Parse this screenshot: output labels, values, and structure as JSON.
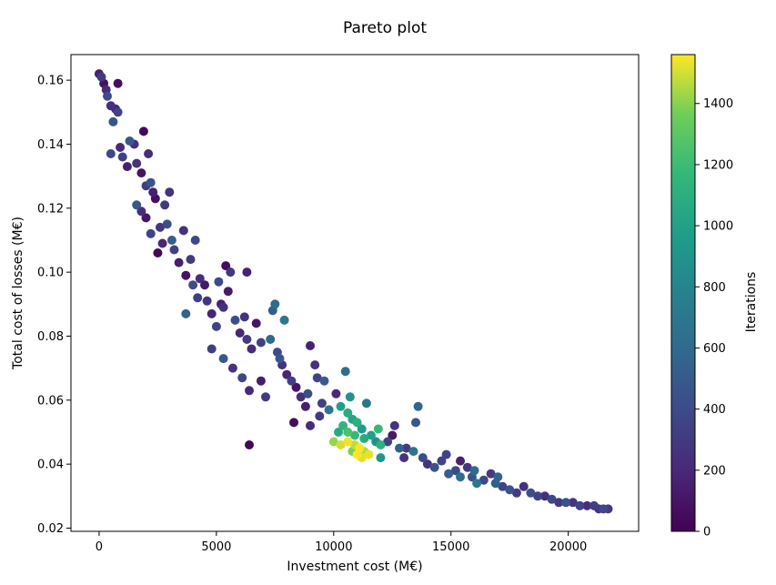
{
  "chart_data": {
    "type": "scatter",
    "title": "Pareto plot",
    "xlabel": "Investment cost (M€)",
    "ylabel": "Total cost of losses (M€)",
    "colorbar_label": "Iterations",
    "xlim": [
      -1200,
      23000
    ],
    "ylim": [
      0.019,
      0.168
    ],
    "x_ticks": [
      0,
      5000,
      10000,
      15000,
      20000
    ],
    "x_tick_labels": [
      "0",
      "5000",
      "10000",
      "15000",
      "20000"
    ],
    "y_ticks": [
      0.02,
      0.04,
      0.06,
      0.08,
      0.1,
      0.12,
      0.14,
      0.16
    ],
    "y_tick_labels": [
      "0.02",
      "0.04",
      "0.06",
      "0.08",
      "0.10",
      "0.12",
      "0.14",
      "0.16"
    ],
    "color_range": [
      0,
      1560
    ],
    "colorbar_ticks": [
      0,
      200,
      400,
      600,
      800,
      1000,
      1200,
      1400
    ],
    "colorbar_tick_labels": [
      "0",
      "200",
      "400",
      "600",
      "800",
      "1000",
      "1200",
      "1400"
    ],
    "colormap": "viridis",
    "grid": false,
    "points": [
      [
        0,
        0.162,
        150
      ],
      [
        100,
        0.161,
        300
      ],
      [
        200,
        0.159,
        80
      ],
      [
        300,
        0.157,
        220
      ],
      [
        350,
        0.155,
        400
      ],
      [
        500,
        0.152,
        250
      ],
      [
        700,
        0.151,
        180
      ],
      [
        800,
        0.159,
        60
      ],
      [
        600,
        0.147,
        450
      ],
      [
        500,
        0.137,
        380
      ],
      [
        900,
        0.139,
        200
      ],
      [
        1000,
        0.136,
        330
      ],
      [
        1300,
        0.141,
        500
      ],
      [
        1200,
        0.133,
        150
      ],
      [
        1600,
        0.134,
        260
      ],
      [
        1800,
        0.131,
        90
      ],
      [
        1900,
        0.144,
        40
      ],
      [
        2100,
        0.137,
        210
      ],
      [
        2000,
        0.127,
        320
      ],
      [
        2300,
        0.125,
        150
      ],
      [
        1600,
        0.121,
        480
      ],
      [
        1800,
        0.119,
        230
      ],
      [
        2000,
        0.117,
        110
      ],
      [
        2200,
        0.112,
        360
      ],
      [
        2400,
        0.123,
        70
      ],
      [
        2600,
        0.114,
        280
      ],
      [
        2700,
        0.109,
        190
      ],
      [
        2500,
        0.106,
        30
      ],
      [
        2900,
        0.115,
        420
      ],
      [
        3000,
        0.125,
        260
      ],
      [
        3200,
        0.107,
        340
      ],
      [
        3400,
        0.103,
        150
      ],
      [
        3600,
        0.113,
        250
      ],
      [
        3700,
        0.099,
        80
      ],
      [
        3900,
        0.104,
        300
      ],
      [
        4100,
        0.11,
        380
      ],
      [
        4300,
        0.098,
        220
      ],
      [
        4500,
        0.096,
        120
      ],
      [
        3700,
        0.087,
        560
      ],
      [
        4200,
        0.092,
        330
      ],
      [
        4600,
        0.091,
        270
      ],
      [
        4800,
        0.087,
        180
      ],
      [
        5000,
        0.083,
        350
      ],
      [
        5300,
        0.089,
        240
      ],
      [
        5500,
        0.094,
        130
      ],
      [
        5800,
        0.085,
        420
      ],
      [
        6000,
        0.081,
        190
      ],
      [
        6300,
        0.079,
        300
      ],
      [
        6500,
        0.076,
        220
      ],
      [
        6700,
        0.084,
        100
      ],
      [
        5100,
        0.097,
        400
      ],
      [
        5600,
        0.1,
        280
      ],
      [
        6300,
        0.1,
        160
      ],
      [
        5400,
        0.102,
        60
      ],
      [
        4800,
        0.076,
        320
      ],
      [
        5300,
        0.073,
        480
      ],
      [
        5700,
        0.07,
        250
      ],
      [
        6100,
        0.067,
        380
      ],
      [
        6400,
        0.063,
        200
      ],
      [
        6900,
        0.066,
        140
      ],
      [
        7100,
        0.061,
        310
      ],
      [
        7300,
        0.079,
        600
      ],
      [
        7400,
        0.088,
        520
      ],
      [
        7500,
        0.09,
        620
      ],
      [
        7900,
        0.085,
        700
      ],
      [
        7600,
        0.075,
        400
      ],
      [
        7800,
        0.071,
        260
      ],
      [
        8000,
        0.068,
        180
      ],
      [
        8200,
        0.066,
        330
      ],
      [
        8400,
        0.064,
        90
      ],
      [
        8600,
        0.061,
        240
      ],
      [
        8800,
        0.058,
        150
      ],
      [
        9000,
        0.077,
        160
      ],
      [
        9200,
        0.071,
        250
      ],
      [
        8900,
        0.062,
        420
      ],
      [
        9500,
        0.059,
        350
      ],
      [
        9800,
        0.057,
        680
      ],
      [
        9400,
        0.055,
        300
      ],
      [
        9000,
        0.052,
        220
      ],
      [
        8300,
        0.053,
        50
      ],
      [
        6400,
        0.046,
        40
      ],
      [
        9600,
        0.066,
        520
      ],
      [
        10500,
        0.069,
        640
      ],
      [
        10700,
        0.061,
        900
      ],
      [
        10100,
        0.062,
        200
      ],
      [
        10300,
        0.058,
        980
      ],
      [
        10600,
        0.056,
        1080
      ],
      [
        10800,
        0.054,
        1020
      ],
      [
        11000,
        0.053,
        1100
      ],
      [
        11200,
        0.051,
        960
      ],
      [
        10400,
        0.052,
        1150
      ],
      [
        10200,
        0.05,
        1050
      ],
      [
        10600,
        0.05,
        1250
      ],
      [
        10900,
        0.049,
        1180
      ],
      [
        11300,
        0.048,
        1080
      ],
      [
        10000,
        0.047,
        1420
      ],
      [
        10300,
        0.046,
        1500
      ],
      [
        10600,
        0.047,
        1540
      ],
      [
        10900,
        0.046,
        1480
      ],
      [
        11100,
        0.045,
        1550
      ],
      [
        11300,
        0.044,
        1460
      ],
      [
        11500,
        0.043,
        1530
      ],
      [
        11200,
        0.042,
        1520
      ],
      [
        11000,
        0.043,
        1560
      ],
      [
        10800,
        0.044,
        1380
      ],
      [
        11400,
        0.059,
        700
      ],
      [
        11600,
        0.049,
        1000
      ],
      [
        11800,
        0.047,
        880
      ],
      [
        12000,
        0.046,
        1120
      ],
      [
        12000,
        0.042,
        920
      ],
      [
        11900,
        0.051,
        1180
      ],
      [
        12300,
        0.047,
        360
      ],
      [
        12600,
        0.052,
        260
      ],
      [
        12800,
        0.045,
        550
      ],
      [
        13100,
        0.045,
        300
      ],
      [
        13400,
        0.044,
        680
      ],
      [
        13600,
        0.058,
        580
      ],
      [
        13500,
        0.053,
        470
      ],
      [
        13800,
        0.042,
        400
      ],
      [
        14000,
        0.04,
        260
      ],
      [
        14300,
        0.039,
        440
      ],
      [
        14600,
        0.041,
        340
      ],
      [
        14900,
        0.037,
        520
      ],
      [
        15200,
        0.038,
        400
      ],
      [
        15400,
        0.036,
        620
      ],
      [
        15700,
        0.039,
        280
      ],
      [
        15900,
        0.036,
        450
      ],
      [
        16100,
        0.034,
        700
      ],
      [
        16400,
        0.035,
        380
      ],
      [
        16700,
        0.037,
        300
      ],
      [
        16900,
        0.034,
        520
      ],
      [
        17200,
        0.033,
        360
      ],
      [
        17500,
        0.032,
        460
      ],
      [
        17800,
        0.031,
        300
      ],
      [
        18100,
        0.033,
        250
      ],
      [
        18400,
        0.031,
        420
      ],
      [
        18700,
        0.03,
        350
      ],
      [
        19000,
        0.03,
        230
      ],
      [
        19300,
        0.029,
        380
      ],
      [
        19600,
        0.028,
        300
      ],
      [
        19900,
        0.028,
        440
      ],
      [
        20200,
        0.028,
        260
      ],
      [
        20500,
        0.027,
        350
      ],
      [
        20800,
        0.027,
        230
      ],
      [
        21100,
        0.027,
        320
      ],
      [
        21300,
        0.026,
        260
      ],
      [
        21500,
        0.026,
        380
      ],
      [
        21700,
        0.026,
        300
      ],
      [
        15400,
        0.041,
        160
      ],
      [
        14800,
        0.043,
        360
      ],
      [
        16000,
        0.038,
        600
      ],
      [
        17000,
        0.036,
        560
      ],
      [
        13000,
        0.042,
        260
      ],
      [
        12500,
        0.049,
        120
      ],
      [
        9300,
        0.067,
        340
      ],
      [
        7700,
        0.073,
        480
      ],
      [
        6900,
        0.078,
        350
      ],
      [
        6200,
        0.086,
        260
      ],
      [
        5200,
        0.09,
        160
      ],
      [
        4000,
        0.096,
        420
      ],
      [
        3100,
        0.11,
        520
      ],
      [
        2800,
        0.121,
        310
      ],
      [
        2200,
        0.128,
        460
      ],
      [
        1500,
        0.14,
        250
      ],
      [
        800,
        0.15,
        340
      ]
    ]
  }
}
